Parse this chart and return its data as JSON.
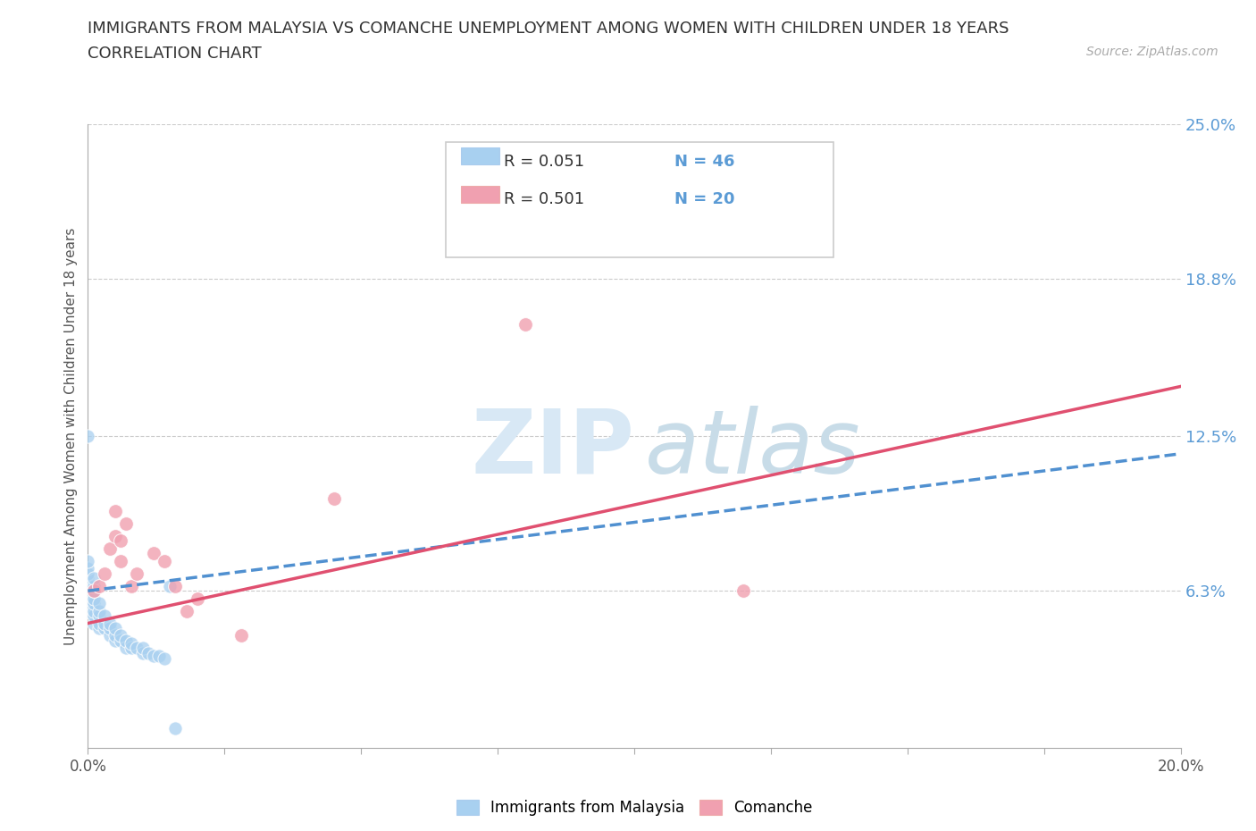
{
  "title": "IMMIGRANTS FROM MALAYSIA VS COMANCHE UNEMPLOYMENT AMONG WOMEN WITH CHILDREN UNDER 18 YEARS",
  "subtitle": "CORRELATION CHART",
  "source": "Source: ZipAtlas.com",
  "ylabel": "Unemployment Among Women with Children Under 18 years",
  "xlim": [
    0.0,
    0.2
  ],
  "ylim": [
    0.0,
    0.25
  ],
  "xticks": [
    0.0,
    0.025,
    0.05,
    0.075,
    0.1,
    0.125,
    0.15,
    0.175,
    0.2
  ],
  "xtick_labels": [
    "0.0%",
    "",
    "",
    "",
    "",
    "",
    "",
    "",
    "20.0%"
  ],
  "ytick_labels_right": [
    "6.3%",
    "12.5%",
    "18.8%",
    "25.0%"
  ],
  "yticks_right": [
    0.063,
    0.125,
    0.188,
    0.25
  ],
  "color_malaysia": "#a8d0f0",
  "color_comanche": "#f0a0b0",
  "color_malaysia_line": "#5090d0",
  "color_comanche_line": "#e05070",
  "malaysia_points_x": [
    0.0,
    0.0,
    0.0,
    0.0,
    0.0,
    0.0,
    0.0,
    0.0,
    0.0,
    0.0,
    0.001,
    0.001,
    0.001,
    0.001,
    0.001,
    0.001,
    0.001,
    0.001,
    0.002,
    0.002,
    0.002,
    0.002,
    0.002,
    0.003,
    0.003,
    0.003,
    0.004,
    0.004,
    0.004,
    0.005,
    0.005,
    0.005,
    0.006,
    0.006,
    0.007,
    0.007,
    0.008,
    0.008,
    0.009,
    0.01,
    0.01,
    0.011,
    0.012,
    0.013,
    0.014,
    0.015,
    0.016
  ],
  "malaysia_points_y": [
    0.055,
    0.058,
    0.06,
    0.063,
    0.065,
    0.068,
    0.07,
    0.072,
    0.075,
    0.125,
    0.05,
    0.053,
    0.055,
    0.058,
    0.06,
    0.063,
    0.065,
    0.068,
    0.048,
    0.05,
    0.053,
    0.055,
    0.058,
    0.048,
    0.05,
    0.053,
    0.045,
    0.048,
    0.05,
    0.043,
    0.045,
    0.048,
    0.043,
    0.045,
    0.04,
    0.043,
    0.04,
    0.042,
    0.04,
    0.038,
    0.04,
    0.038,
    0.037,
    0.037,
    0.036,
    0.065,
    0.008
  ],
  "comanche_points_x": [
    0.001,
    0.002,
    0.003,
    0.004,
    0.005,
    0.005,
    0.006,
    0.006,
    0.007,
    0.008,
    0.009,
    0.012,
    0.014,
    0.016,
    0.018,
    0.02,
    0.028,
    0.045,
    0.08,
    0.12
  ],
  "comanche_points_y": [
    0.063,
    0.065,
    0.07,
    0.08,
    0.085,
    0.095,
    0.075,
    0.083,
    0.09,
    0.065,
    0.07,
    0.078,
    0.075,
    0.065,
    0.055,
    0.06,
    0.045,
    0.1,
    0.17,
    0.063
  ],
  "malaysia_trend_x": [
    0.0,
    0.2
  ],
  "malaysia_trend_y": [
    0.063,
    0.118
  ],
  "comanche_trend_x": [
    0.0,
    0.2
  ],
  "comanche_trend_y": [
    0.05,
    0.145
  ]
}
